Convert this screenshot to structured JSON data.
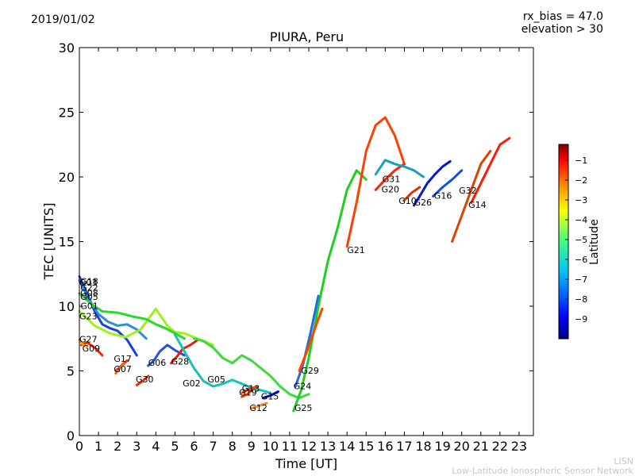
{
  "header": {
    "date": "2019/01/02",
    "rx_bias": "rx_bias = 47.0",
    "elevation": "elevation > 30",
    "title": "PIURA, Peru"
  },
  "footer": {
    "line1": "LISN",
    "line2": "Low-Latitude Ionospheric Sensor Network"
  },
  "chart_data": {
    "type": "scatter",
    "title": "PIURA, Peru",
    "xlabel": "Time [UT]",
    "ylabel": "TEC [UNITS]",
    "xlim": [
      0,
      23.75
    ],
    "ylim": [
      0,
      30
    ],
    "xticks": [
      0,
      1,
      2,
      3,
      4,
      5,
      6,
      7,
      8,
      9,
      10,
      11,
      12,
      13,
      14,
      15,
      16,
      17,
      18,
      19,
      20,
      21,
      22,
      23
    ],
    "yticks": [
      0,
      5,
      10,
      15,
      20,
      25,
      30
    ],
    "colorbar": {
      "label": "Latitude",
      "range": [
        -10,
        -0.2
      ],
      "ticks": [
        -1,
        -2,
        -3,
        -4,
        -5,
        -6,
        -7,
        -8,
        -9
      ],
      "colormap": [
        "#00007f",
        "#0000ff",
        "#007fff",
        "#00ffff",
        "#7fff7f",
        "#ffff00",
        "#ff7f00",
        "#ff0000",
        "#7f0000"
      ]
    },
    "grid": false,
    "series": [
      {
        "name": "G03",
        "color": "#1a3fe0",
        "x": [
          0.0,
          0.4,
          0.8,
          1.2,
          1.6,
          2.0,
          2.5,
          3.0
        ],
        "y": [
          12.3,
          11.0,
          9.6,
          8.6,
          8.3,
          8.1,
          7.4,
          6.2
        ]
      },
      {
        "name": "G22",
        "color": "#2a8fd8",
        "x": [
          0.0,
          0.5,
          1.0,
          1.5,
          2.0,
          2.5,
          3.0,
          3.5
        ],
        "y": [
          12.0,
          10.5,
          9.4,
          8.8,
          8.5,
          8.6,
          8.2,
          7.5
        ]
      },
      {
        "name": "G09",
        "color": "#ff2200",
        "x": [
          0.1,
          0.4,
          0.8,
          1.2
        ],
        "y": [
          7.0,
          7.2,
          6.8,
          6.2
        ]
      },
      {
        "name": "G27",
        "color": "#ff9d00",
        "x": [
          0.0,
          0.2,
          0.4
        ],
        "y": [
          7.4,
          7.0,
          6.9
        ]
      },
      {
        "name": "G23",
        "color": "#9cf21a",
        "x": [
          0.0,
          0.8,
          1.6,
          2.4,
          3.2,
          4.0,
          4.6,
          5.0,
          5.5,
          6.0,
          6.5,
          7.0
        ],
        "y": [
          9.6,
          8.5,
          7.9,
          7.6,
          8.2,
          9.8,
          8.5,
          8.0,
          7.9,
          7.6,
          7.3,
          7.0
        ]
      },
      {
        "name": "G01",
        "color": "#2ad82a",
        "x": [
          0.0,
          0.6,
          1.2,
          2.0,
          2.8,
          3.5,
          4.0,
          4.5,
          5.0,
          5.5
        ],
        "y": [
          11.0,
          10.2,
          9.6,
          9.5,
          9.2,
          9.0,
          8.6,
          8.3,
          7.9,
          7.5
        ]
      },
      {
        "name": "G17",
        "color": "#ff3000",
        "x": [
          1.9,
          2.2,
          2.5
        ],
        "y": [
          5.0,
          5.4,
          5.8
        ]
      },
      {
        "name": "G07",
        "color": "#ff6a00",
        "x": [
          1.9,
          2.1,
          2.3
        ],
        "y": [
          4.8,
          5.2,
          5.6
        ]
      },
      {
        "name": "G30",
        "color": "#ff2800",
        "x": [
          3.0,
          3.3,
          3.6
        ],
        "y": [
          3.9,
          4.2,
          4.6
        ]
      },
      {
        "name": "G06",
        "color": "#2050e8",
        "x": [
          3.6,
          3.9,
          4.2,
          4.6,
          5.0,
          5.5
        ],
        "y": [
          5.4,
          5.8,
          6.5,
          7.0,
          6.6,
          6.2
        ]
      },
      {
        "name": "G28",
        "color": "#e02010",
        "x": [
          4.8,
          5.1,
          5.4,
          5.8,
          6.2
        ],
        "y": [
          5.6,
          6.1,
          6.7,
          7.0,
          7.4
        ]
      },
      {
        "name": "G02",
        "color": "#18c0b8",
        "x": [
          5.0,
          5.5,
          6.0,
          6.5,
          7.0,
          7.5,
          8.0,
          8.5,
          9.0,
          9.5,
          10.0
        ],
        "y": [
          7.8,
          6.5,
          5.2,
          4.2,
          3.8,
          4.0,
          4.3,
          4.0,
          3.7,
          3.5,
          3.3
        ]
      },
      {
        "name": "G05",
        "color": "#3cda3c",
        "x": [
          6.0,
          6.5,
          7.0,
          7.5,
          8.0,
          8.5,
          9.0,
          9.5,
          10.0,
          10.5,
          11.0,
          11.5,
          12.0
        ],
        "y": [
          7.5,
          7.3,
          6.8,
          6.0,
          5.6,
          6.2,
          5.8,
          5.2,
          4.6,
          3.8,
          3.2,
          2.9,
          3.2
        ]
      },
      {
        "name": "G13",
        "color": "#ff3c00",
        "x": [
          8.5,
          8.9,
          9.3
        ],
        "y": [
          3.3,
          3.6,
          3.8
        ]
      },
      {
        "name": "G19",
        "color": "#e84000",
        "x": [
          8.5,
          8.8,
          9.0
        ],
        "y": [
          3.0,
          3.2,
          3.5
        ]
      },
      {
        "name": "G12",
        "color": "#ff8a00",
        "x": [
          9.0,
          9.4,
          9.8
        ],
        "y": [
          2.1,
          2.3,
          2.5
        ]
      },
      {
        "name": "G15",
        "color": "#0010d0",
        "x": [
          9.6,
          10.0,
          10.4
        ],
        "y": [
          2.9,
          3.1,
          3.4
        ]
      },
      {
        "name": "G25",
        "color": "#1ed01e",
        "x": [
          11.2,
          11.6,
          12.0,
          12.5,
          13.0,
          13.5,
          14.0,
          14.5,
          15.0
        ],
        "y": [
          1.9,
          3.5,
          6.0,
          10.0,
          13.5,
          16.0,
          19.0,
          20.5,
          19.8
        ]
      },
      {
        "name": "G24",
        "color": "#1a6cf0",
        "x": [
          11.3,
          11.7,
          12.1,
          12.5
        ],
        "y": [
          3.8,
          5.5,
          8.0,
          10.8
        ]
      },
      {
        "name": "G29",
        "color": "#ff4400",
        "x": [
          11.5,
          11.9,
          12.3,
          12.7
        ],
        "y": [
          5.0,
          6.5,
          8.2,
          9.8
        ]
      },
      {
        "name": "G21",
        "color": "#ff4000",
        "x": [
          14.0,
          14.5,
          15.0,
          15.5,
          16.0,
          16.5,
          17.0
        ],
        "y": [
          14.6,
          18.0,
          22.0,
          24.0,
          24.6,
          23.2,
          21.0
        ]
      },
      {
        "name": "G20",
        "color": "#ff2200",
        "x": [
          15.5,
          16.0,
          16.5,
          17.0
        ],
        "y": [
          19.0,
          19.8,
          20.5,
          21.0
        ]
      },
      {
        "name": "G31",
        "color": "#18a0c0",
        "x": [
          15.5,
          16.0,
          16.5,
          17.0,
          17.5,
          18.0
        ],
        "y": [
          20.2,
          21.3,
          21.0,
          20.8,
          20.5,
          20.0
        ]
      },
      {
        "name": "G10",
        "color": "#e03000",
        "x": [
          17.0,
          17.4,
          17.8
        ],
        "y": [
          18.2,
          18.8,
          19.2
        ]
      },
      {
        "name": "G26",
        "color": "#0018c8",
        "x": [
          17.5,
          17.8,
          18.2,
          18.6,
          19.0,
          19.4
        ],
        "y": [
          17.8,
          18.5,
          19.5,
          20.2,
          20.8,
          21.2
        ]
      },
      {
        "name": "G16",
        "color": "#1450e0",
        "x": [
          18.5,
          19.0,
          19.5,
          20.0
        ],
        "y": [
          18.5,
          19.2,
          19.8,
          20.5
        ]
      },
      {
        "name": "G32",
        "color": "#e04000",
        "x": [
          19.5,
          20.0,
          20.5,
          21.0,
          21.5
        ],
        "y": [
          15.0,
          17.0,
          19.0,
          21.0,
          22.0
        ]
      },
      {
        "name": "G14",
        "color": "#ff1a00",
        "x": [
          20.5,
          21.0,
          21.5,
          22.0,
          22.5
        ],
        "y": [
          18.0,
          19.5,
          21.0,
          22.5,
          23.0
        ]
      }
    ],
    "point_labels": [
      {
        "text": "G03",
        "x": 0.0,
        "y": 11.6
      },
      {
        "text": "G18",
        "x": 0.05,
        "y": 11.7
      },
      {
        "text": "G22",
        "x": 0.05,
        "y": 11.2
      },
      {
        "text": "G08",
        "x": 0.05,
        "y": 10.8
      },
      {
        "text": "G05",
        "x": 0.05,
        "y": 10.5
      },
      {
        "text": "G01",
        "x": 0.05,
        "y": 9.8
      },
      {
        "text": "G23",
        "x": 0.0,
        "y": 9.0
      },
      {
        "text": "G27",
        "x": 0.0,
        "y": 7.2
      },
      {
        "text": "G09",
        "x": 0.15,
        "y": 6.5
      },
      {
        "text": "G17",
        "x": 1.8,
        "y": 5.7
      },
      {
        "text": "G07",
        "x": 1.8,
        "y": 4.9
      },
      {
        "text": "G30",
        "x": 2.95,
        "y": 4.1
      },
      {
        "text": "G06",
        "x": 3.6,
        "y": 5.4
      },
      {
        "text": "G28",
        "x": 4.8,
        "y": 5.5
      },
      {
        "text": "G02",
        "x": 5.4,
        "y": 3.8
      },
      {
        "text": "G05",
        "x": 6.7,
        "y": 4.1
      },
      {
        "text": "G13",
        "x": 8.5,
        "y": 3.4
      },
      {
        "text": "G19",
        "x": 8.35,
        "y": 3.1
      },
      {
        "text": "G12",
        "x": 8.9,
        "y": 1.9
      },
      {
        "text": "G15",
        "x": 9.5,
        "y": 2.8
      },
      {
        "text": "G29",
        "x": 11.6,
        "y": 4.8
      },
      {
        "text": "G24",
        "x": 11.2,
        "y": 3.6
      },
      {
        "text": "G25",
        "x": 11.25,
        "y": 1.9
      },
      {
        "text": "G21",
        "x": 14.0,
        "y": 14.1
      },
      {
        "text": "G20",
        "x": 15.8,
        "y": 18.8
      },
      {
        "text": "G31",
        "x": 15.85,
        "y": 19.6
      },
      {
        "text": "G10",
        "x": 16.7,
        "y": 17.9
      },
      {
        "text": "G26",
        "x": 17.5,
        "y": 17.8
      },
      {
        "text": "G16",
        "x": 18.55,
        "y": 18.3
      },
      {
        "text": "G32",
        "x": 19.85,
        "y": 18.7
      },
      {
        "text": "G14",
        "x": 20.35,
        "y": 17.6
      }
    ]
  }
}
